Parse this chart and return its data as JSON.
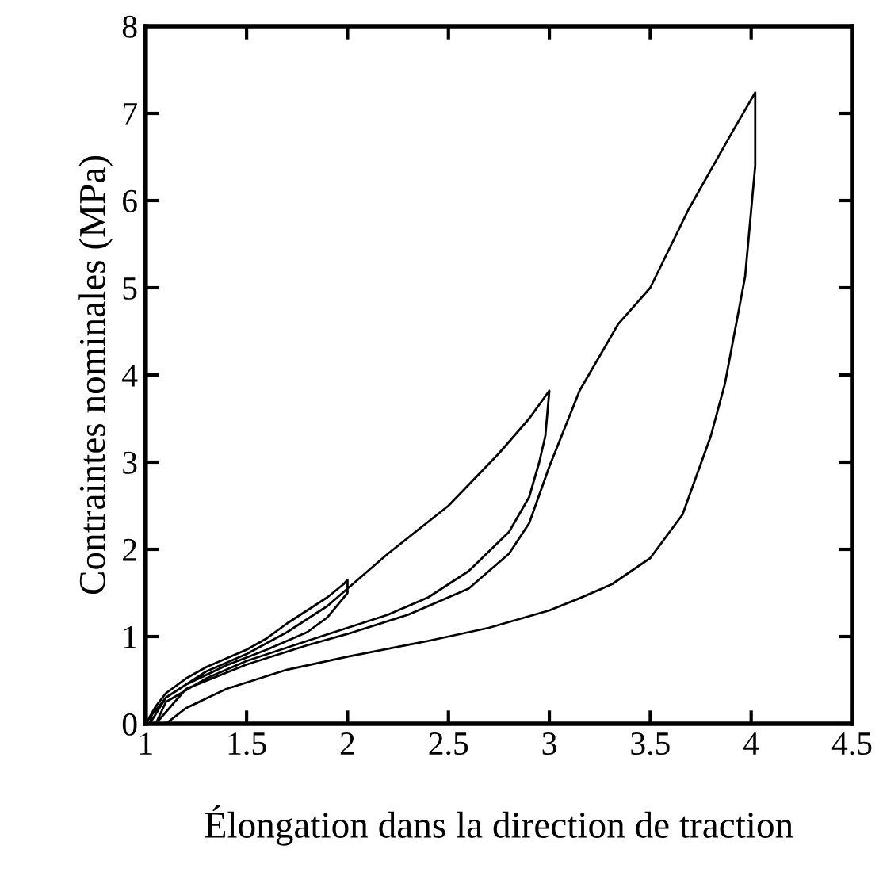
{
  "chart_data": {
    "type": "line",
    "xlabel": "Élongation dans la direction de traction",
    "ylabel": "Contraintes nominales (MPa)",
    "xlim": [
      1,
      4.5
    ],
    "ylim": [
      0,
      8
    ],
    "xticks": [
      1,
      1.5,
      2,
      2.5,
      3,
      3.5,
      4,
      4.5
    ],
    "yticks": [
      0,
      1,
      2,
      3,
      4,
      5,
      6,
      7,
      8
    ],
    "grid": false,
    "legend": false,
    "marker": "none",
    "line_style": "solid",
    "series": [
      {
        "color": "#000000",
        "x": [
          1.0,
          1.05,
          1.1,
          1.2,
          1.3,
          1.5,
          1.6,
          1.7,
          1.8,
          1.9,
          1.98,
          2.0,
          2.0,
          1.9,
          1.8,
          1.6,
          1.4,
          1.2,
          1.1,
          1.03,
          1.02,
          1.1,
          1.3,
          1.5,
          1.7,
          1.9,
          2.0,
          2.2,
          2.5,
          2.75,
          2.9,
          3.0,
          2.98,
          2.95,
          2.9,
          2.8,
          2.6,
          2.4,
          2.2,
          2.0,
          1.8,
          1.5,
          1.3,
          1.1,
          1.05,
          1.2,
          1.5,
          1.8,
          2.0,
          2.3,
          2.6,
          2.8,
          2.9,
          3.0,
          3.15,
          3.34,
          3.5,
          3.69,
          3.9,
          4.02,
          4.02,
          3.97,
          3.87,
          3.8,
          3.66,
          3.5,
          3.31,
          3.15,
          3.0,
          2.7,
          2.4,
          2.0,
          1.7,
          1.4,
          1.2,
          1.1
        ],
        "values": [
          0,
          0.2,
          0.35,
          0.52,
          0.65,
          0.85,
          0.98,
          1.15,
          1.3,
          1.45,
          1.6,
          1.65,
          1.5,
          1.22,
          1.05,
          0.85,
          0.67,
          0.45,
          0.3,
          0.1,
          0,
          0.3,
          0.6,
          0.8,
          1.05,
          1.35,
          1.55,
          1.95,
          2.5,
          3.1,
          3.5,
          3.82,
          3.3,
          3.0,
          2.6,
          2.2,
          1.75,
          1.45,
          1.25,
          1.1,
          0.95,
          0.72,
          0.52,
          0.25,
          0,
          0.4,
          0.68,
          0.9,
          1.03,
          1.25,
          1.55,
          1.95,
          2.3,
          2.95,
          3.82,
          4.58,
          5.0,
          5.9,
          6.76,
          7.24,
          6.4,
          5.13,
          3.9,
          3.3,
          2.4,
          1.9,
          1.6,
          1.44,
          1.3,
          1.1,
          0.95,
          0.77,
          0.62,
          0.4,
          0.18,
          0
        ]
      }
    ]
  }
}
